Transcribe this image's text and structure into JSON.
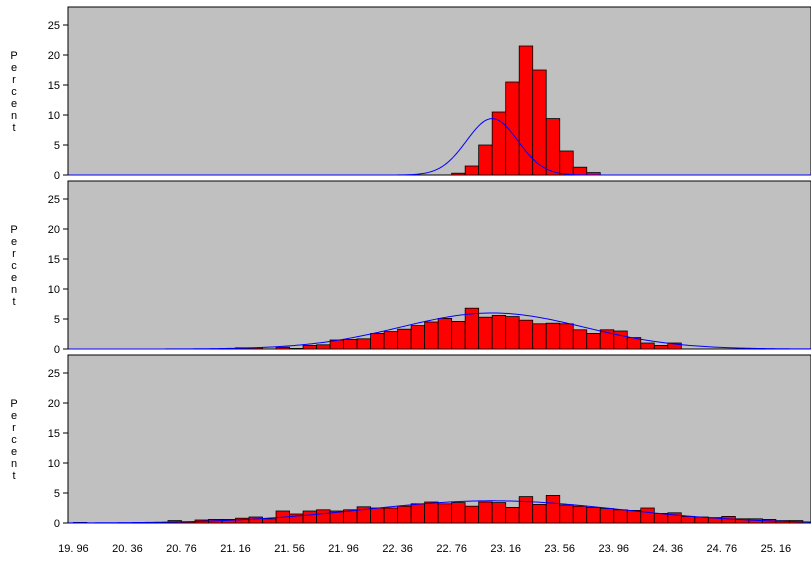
{
  "chart_data": [
    {
      "type": "bar",
      "panel": 1,
      "ylabel": "Percent",
      "ylim": [
        0,
        28
      ],
      "yticks": [
        0,
        5,
        10,
        15,
        20,
        25
      ],
      "xlim": [
        19.92,
        25.42
      ],
      "bin_width": 0.1,
      "bar_starts": [
        22.76,
        22.86,
        22.96,
        23.06,
        23.16,
        23.26,
        23.36,
        23.46,
        23.56,
        23.66,
        23.76,
        23.86,
        23.96
      ],
      "values": [
        0.3,
        1.5,
        5.0,
        10.5,
        15.5,
        21.5,
        17.5,
        9.4,
        4.0,
        1.3,
        0.4,
        0,
        0
      ],
      "curve": {
        "type": "normal",
        "mean": 23.06,
        "sd": 0.19,
        "scale": 9.4
      },
      "colors": {
        "bar": "#ff0000",
        "curve": "#0000ff",
        "background": "#c0c0c0"
      }
    },
    {
      "type": "bar",
      "panel": 2,
      "ylabel": "Percent",
      "ylim": [
        0,
        28
      ],
      "yticks": [
        0,
        5,
        10,
        15,
        20,
        25
      ],
      "xlim": [
        19.92,
        25.42
      ],
      "bin_width": 0.1,
      "bar_starts": [
        21.16,
        21.26,
        21.36,
        21.46,
        21.56,
        21.66,
        21.76,
        21.86,
        21.96,
        22.06,
        22.16,
        22.26,
        22.36,
        22.46,
        22.56,
        22.66,
        22.76,
        22.86,
        22.96,
        23.06,
        23.16,
        23.26,
        23.36,
        23.46,
        23.56,
        23.66,
        23.76,
        23.86,
        23.96,
        24.06,
        24.16,
        24.26,
        24.36,
        24.46,
        24.56
      ],
      "values": [
        0.2,
        0.2,
        0,
        0.3,
        0.1,
        0.6,
        0.7,
        1.5,
        1.6,
        1.7,
        2.6,
        2.9,
        3.3,
        3.9,
        4.5,
        5.1,
        4.6,
        6.8,
        5.3,
        5.6,
        5.4,
        4.8,
        4.2,
        4.3,
        4.2,
        3.2,
        2.6,
        3.2,
        3.0,
        1.9,
        1.0,
        0.6,
        1.0,
        0,
        0
      ],
      "curve": {
        "type": "normal",
        "mean": 23.06,
        "sd": 0.68,
        "scale": 6.0
      },
      "colors": {
        "bar": "#ff0000",
        "curve": "#0000ff",
        "background": "#c0c0c0"
      }
    },
    {
      "type": "bar",
      "panel": 3,
      "ylabel": "Percent",
      "ylim": [
        0,
        28
      ],
      "yticks": [
        0,
        5,
        10,
        15,
        20,
        25
      ],
      "xlim": [
        19.92,
        25.42
      ],
      "xlabels": [
        "19. 96",
        "20. 36",
        "20. 76",
        "21. 16",
        "21. 56",
        "21. 96",
        "22. 36",
        "22. 76",
        "23. 16",
        "23. 56",
        "23. 96",
        "24. 36",
        "24. 76",
        "25. 16"
      ],
      "bin_width": 0.1,
      "bar_starts": [
        19.96,
        20.06,
        20.16,
        20.26,
        20.36,
        20.46,
        20.56,
        20.66,
        20.76,
        20.86,
        20.96,
        21.06,
        21.16,
        21.26,
        21.36,
        21.46,
        21.56,
        21.66,
        21.76,
        21.86,
        21.96,
        22.06,
        22.16,
        22.26,
        22.36,
        22.46,
        22.56,
        22.66,
        22.76,
        22.86,
        22.96,
        23.06,
        23.16,
        23.26,
        23.36,
        23.46,
        23.56,
        23.66,
        23.76,
        23.86,
        23.96,
        24.06,
        24.16,
        24.26,
        24.36,
        24.46,
        24.56,
        24.66,
        24.76,
        24.86,
        24.96,
        25.06,
        25.16,
        25.26,
        25.36
      ],
      "values": [
        0.1,
        0,
        0,
        0,
        0,
        0.1,
        0.1,
        0.4,
        0.2,
        0.5,
        0.6,
        0.6,
        0.8,
        1.0,
        0.7,
        2.0,
        1.5,
        2.0,
        2.2,
        2.0,
        2.2,
        2.7,
        2.5,
        2.5,
        2.8,
        3.2,
        3.5,
        3.2,
        3.4,
        2.8,
        3.5,
        3.4,
        2.6,
        4.4,
        3.1,
        4.6,
        3.0,
        2.8,
        2.6,
        2.4,
        2.2,
        2.1,
        2.5,
        1.6,
        1.7,
        1.1,
        1.0,
        0.9,
        1.1,
        0.7,
        0.7,
        0.6,
        0.4,
        0.4,
        0
      ],
      "curve": {
        "type": "normal",
        "mean": 23.06,
        "sd": 0.95,
        "scale": 3.7
      },
      "colors": {
        "bar": "#ff0000",
        "curve": "#0000ff",
        "background": "#c0c0c0"
      }
    }
  ]
}
